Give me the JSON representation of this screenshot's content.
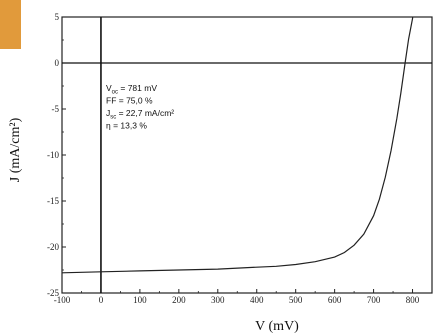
{
  "chart_data": {
    "type": "line",
    "title": "",
    "xlabel": "V (mV)",
    "ylabel": "J (mA/cm²)",
    "xlim": [
      -100,
      850
    ],
    "ylim": [
      -25,
      5
    ],
    "x_ticks": [
      -100,
      0,
      100,
      200,
      300,
      400,
      500,
      600,
      700,
      800
    ],
    "y_ticks": [
      5,
      0,
      -5,
      -10,
      -15,
      -20,
      -25
    ],
    "grid": false,
    "reference_lines": {
      "x": 0,
      "y": 0
    },
    "series": [
      {
        "line_color": "#222222",
        "x": [
          -100,
          0,
          100,
          200,
          300,
          400,
          450,
          500,
          550,
          600,
          625,
          650,
          675,
          700,
          715,
          730,
          745,
          760,
          770,
          781,
          790,
          800,
          805
        ],
        "y": [
          -22.8,
          -22.7,
          -22.6,
          -22.5,
          -22.4,
          -22.2,
          -22.1,
          -21.9,
          -21.6,
          -21.1,
          -20.6,
          -19.8,
          -18.6,
          -16.6,
          -14.8,
          -12.4,
          -9.5,
          -6.0,
          -3.3,
          0.0,
          2.6,
          4.8,
          6.5
        ]
      }
    ],
    "annotations": [
      {
        "base": "V",
        "sub": "oc",
        "text": "= 781 mV"
      },
      {
        "base": "FF",
        "sub": "",
        "text": "= 75,0 %"
      },
      {
        "base": "J",
        "sub": "sc",
        "text": "= 22,7 mA/cm²"
      },
      {
        "base": "η",
        "sub": "",
        "text": "= 13,3 %"
      }
    ]
  },
  "decoration": {
    "corner_tab_color": "#e19a3b"
  }
}
